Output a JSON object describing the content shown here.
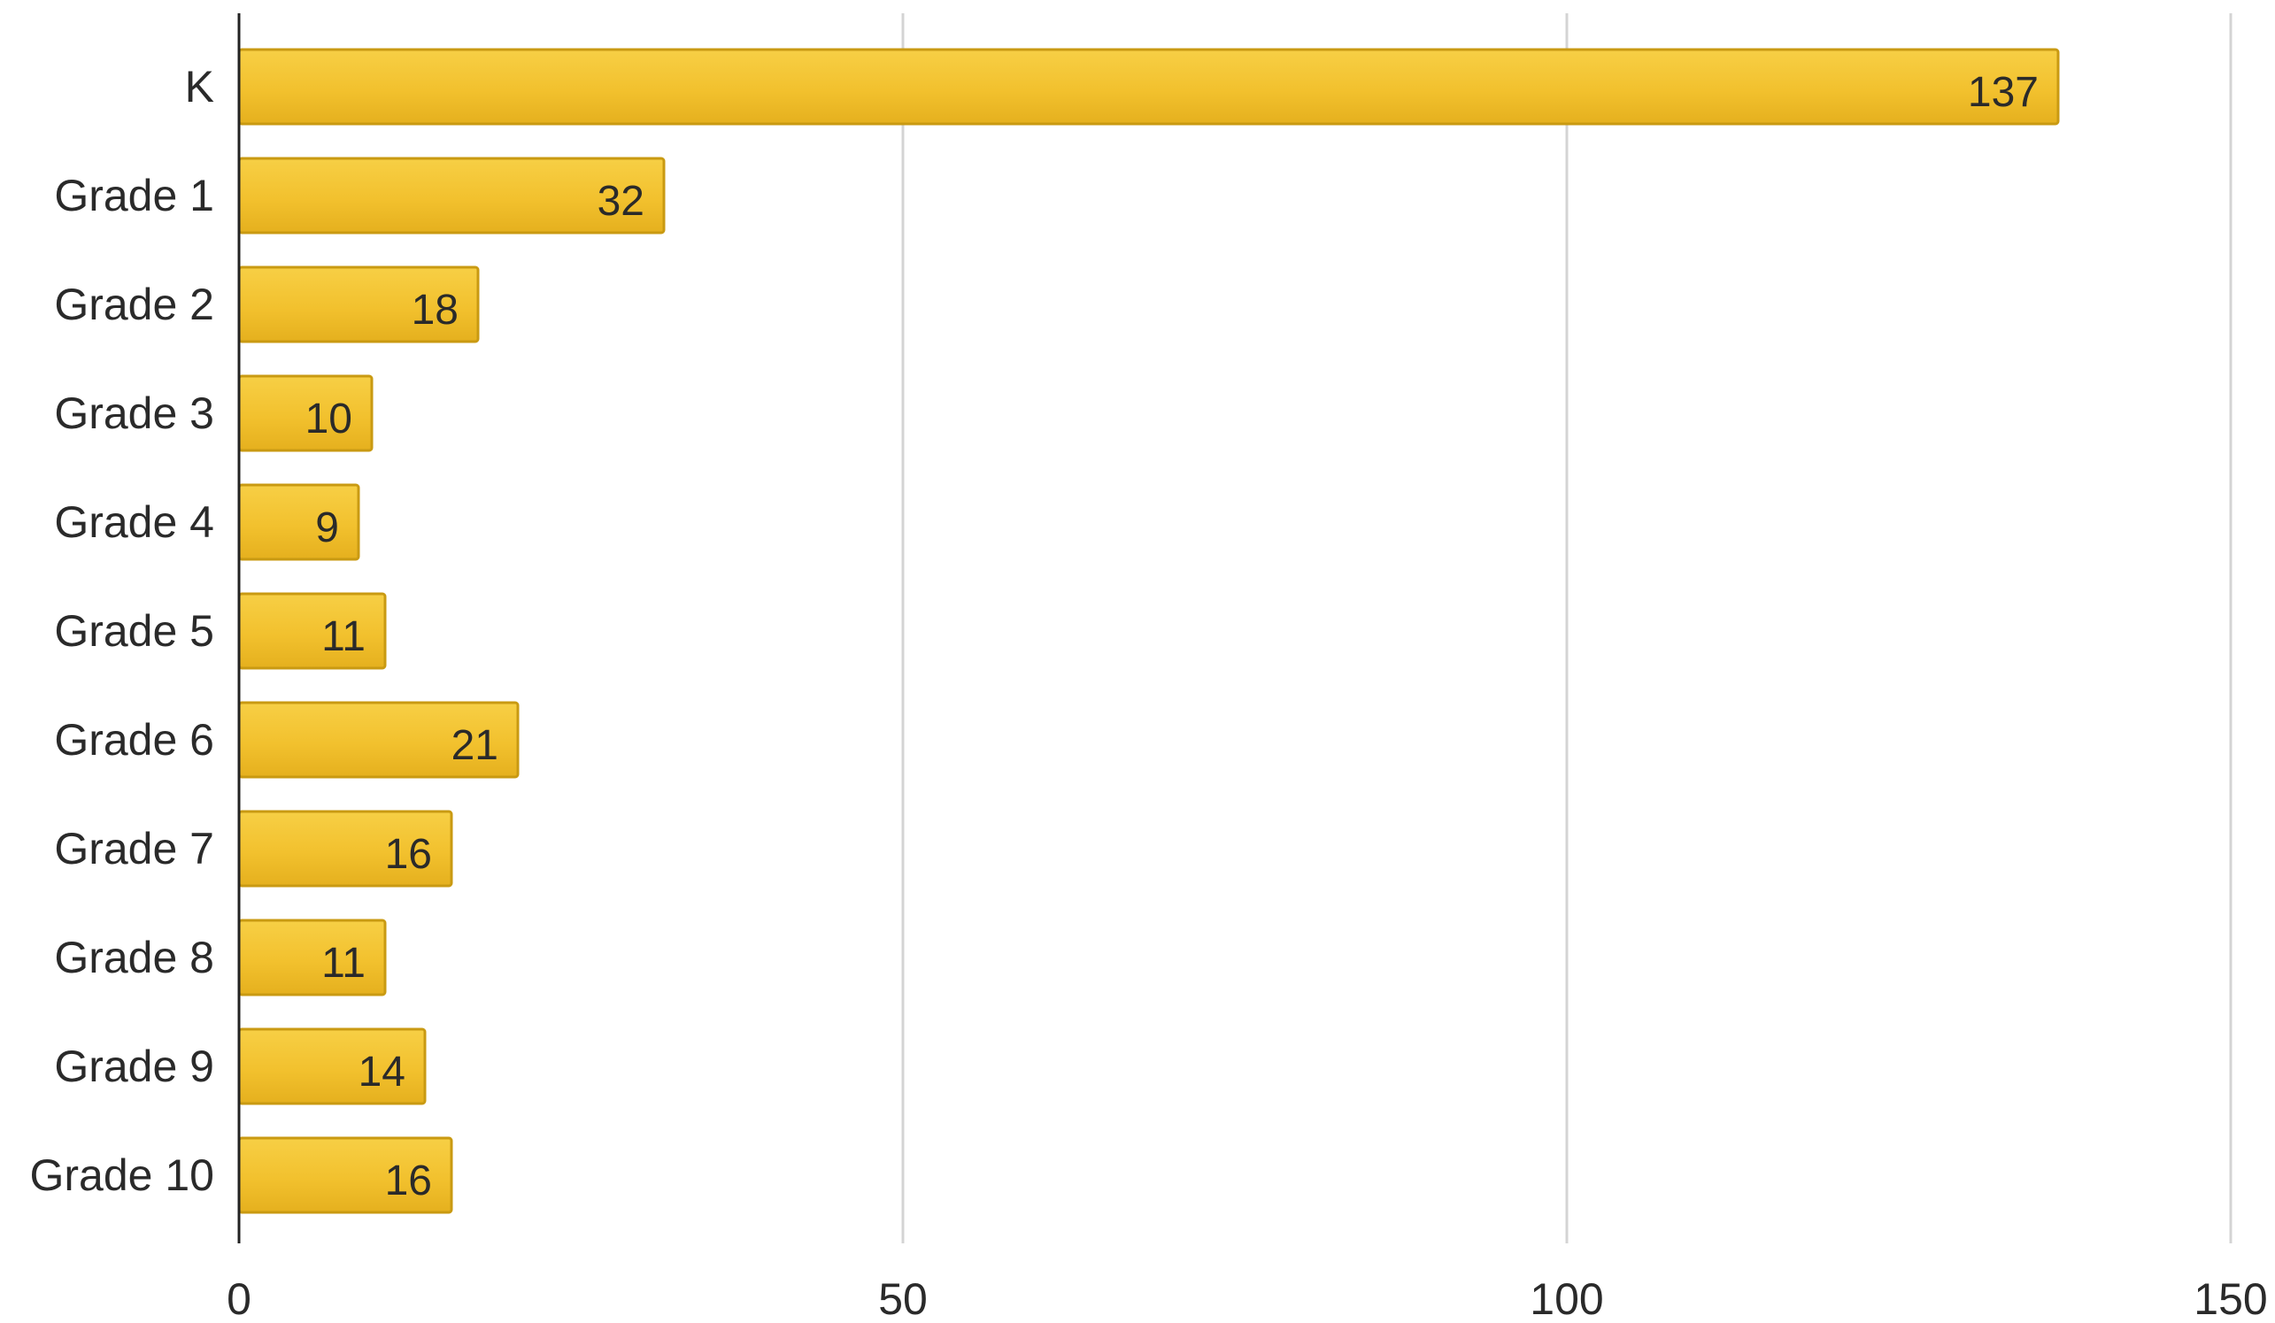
{
  "chart_data": {
    "type": "bar",
    "orientation": "horizontal",
    "title": "",
    "xlabel": "",
    "ylabel": "",
    "categories": [
      "K",
      "Grade 1",
      "Grade 2",
      "Grade 3",
      "Grade 4",
      "Grade 5",
      "Grade 6",
      "Grade 7",
      "Grade 8",
      "Grade 9",
      "Grade 10"
    ],
    "values": [
      137,
      32,
      18,
      10,
      9,
      11,
      21,
      16,
      11,
      14,
      16
    ],
    "data_labels": [
      "137",
      "32",
      "18",
      "10",
      "9",
      "11",
      "21",
      "16",
      "11",
      "14",
      "16"
    ],
    "xlim": [
      0,
      150
    ],
    "x_ticks": [
      0,
      50,
      100,
      150
    ],
    "x_tick_labels": [
      "0",
      "50",
      "100",
      "150"
    ],
    "grid": "vertical",
    "legend": "none",
    "bar_color": "#F2C12E",
    "bar_border_color": "#C99A12",
    "grid_color": "#D4D4D4",
    "axis_color": "#222222",
    "text_color": "#2A2A2A"
  }
}
